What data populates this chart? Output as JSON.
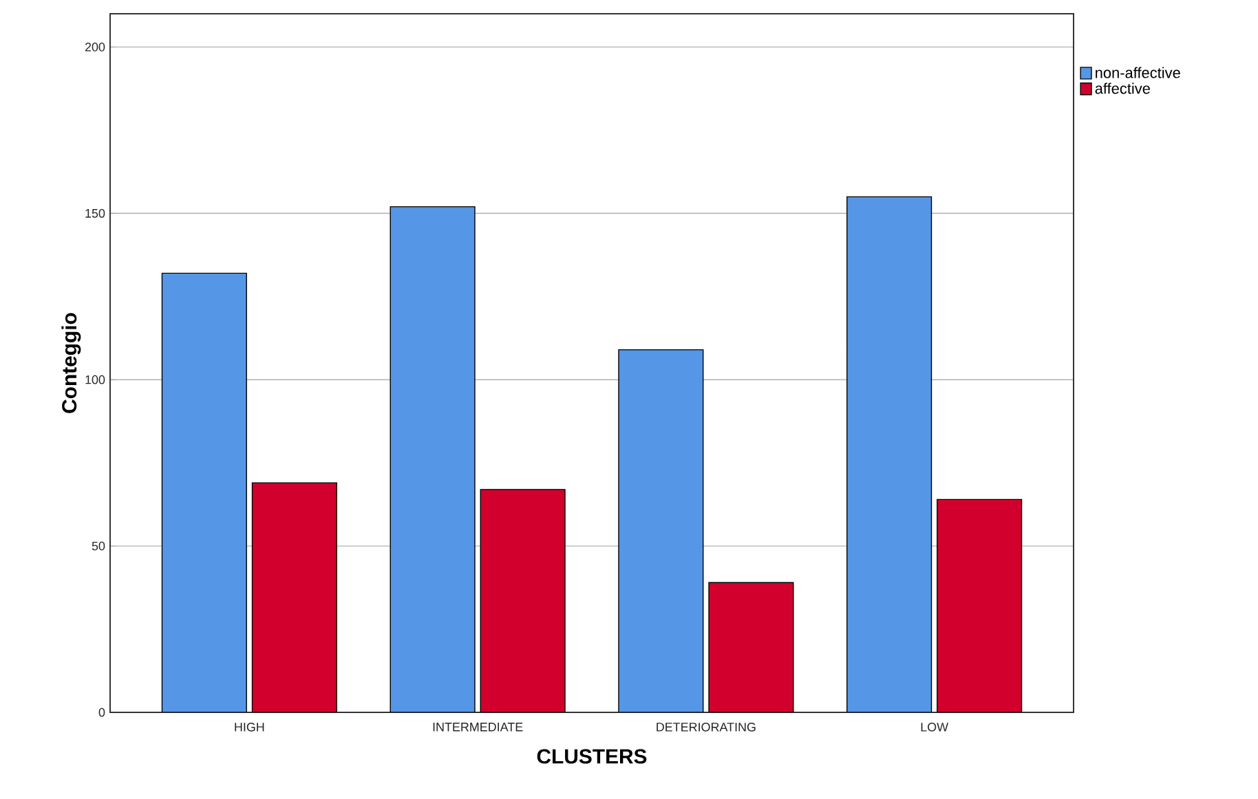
{
  "chart_data": {
    "type": "bar",
    "xlabel": "CLUSTERS",
    "ylabel": "Conteggio",
    "categories": [
      "HIGH",
      "INTERMEDIATE",
      "DETERIORATING",
      "LOW"
    ],
    "series": [
      {
        "name": "non-affective",
        "color": "#5596e6",
        "values": [
          132,
          152,
          109,
          155
        ]
      },
      {
        "name": "affective",
        "color": "#d2002d",
        "values": [
          69,
          67,
          39,
          64
        ]
      }
    ],
    "ylim": [
      0,
      210
    ],
    "yticks": [
      0,
      50,
      100,
      150,
      200
    ],
    "grid": "y",
    "legend": "top right"
  }
}
